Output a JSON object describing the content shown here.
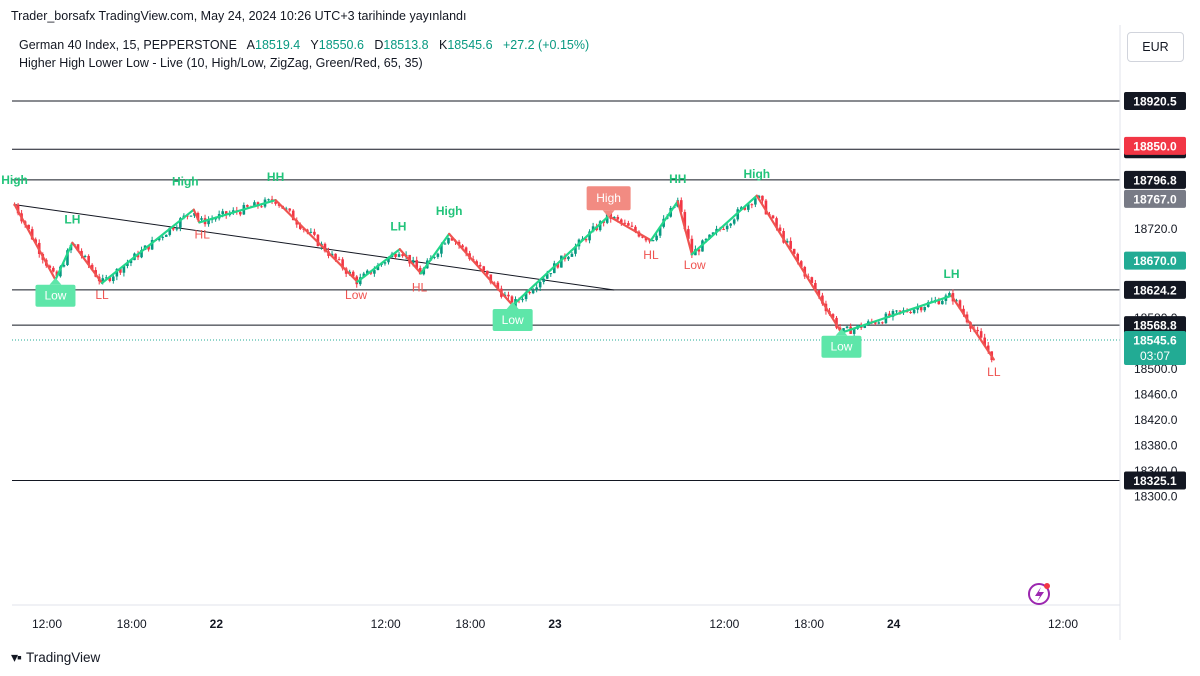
{
  "header": {
    "publisher": "Trader_borsafx TradingView.com, May 24, 2024 10:26 UTC+3 tarihinde yayınlandı"
  },
  "symbol": {
    "name": "German 40 Index, 15, PEPPERSTONE",
    "open_label": "A",
    "open": "18519.4",
    "high_label": "Y",
    "high": "18550.6",
    "low_label": "D",
    "low": "18513.8",
    "close_label": "K",
    "close": "18545.6",
    "change": "+27.2 (+0.15%)"
  },
  "indicator": {
    "text": "Higher High Lower Low - Live (10, High/Low, ZigZag, Green/Red, 65, 35)"
  },
  "currency_button": "EUR",
  "footer": {
    "logo_text": "TradingView"
  },
  "colors": {
    "up": "#089981",
    "down": "#f23645",
    "zigzag_up": "#22d68a",
    "zigzag_down": "#ef5350",
    "label_green_bg": "#5ee6a9",
    "label_red_bg": "#f28b82",
    "price_green": "#22ab94",
    "price_red": "#f23645"
  },
  "icons": {
    "lightning": "lightning-bolt-icon"
  },
  "chart_data": {
    "type": "candlestick",
    "ylim": [
      18290,
      18950
    ],
    "y_ticks": [
      "18720.0",
      "18580.0",
      "18500.0",
      "18460.0",
      "18420.0",
      "18380.0",
      "18340.0",
      "18300.0"
    ],
    "x_ticks": [
      {
        "label": "12:00",
        "t": 0.0
      },
      {
        "label": "18:00",
        "t": 6.0
      },
      {
        "label": "22",
        "t": 12.0
      },
      {
        "label": "12:00",
        "t": 24.0
      },
      {
        "label": "18:00",
        "t": 30.0
      },
      {
        "label": "23",
        "t": 36.0
      },
      {
        "label": "12:00",
        "t": 48.0
      },
      {
        "label": "18:00",
        "t": 54.0
      },
      {
        "label": "24",
        "t": 60.0
      },
      {
        "label": "12:00",
        "t": 72.0
      }
    ],
    "horizontal_lines": [
      {
        "price": 18920.5,
        "label": "18920.5"
      },
      {
        "price": 18844.8,
        "label": "18844.8"
      },
      {
        "price": 18796.8,
        "label": "18796.8"
      },
      {
        "price": 18624.2,
        "label": "18624.2"
      },
      {
        "price": 18568.8,
        "label": "18568.8"
      },
      {
        "price": 18325.1,
        "label": "18325.1"
      }
    ],
    "price_tags": [
      {
        "price": 18850.0,
        "label": "18850.0",
        "bg": "#f23645"
      },
      {
        "price": 18767.0,
        "label": "18767.0",
        "bg": "#787b86"
      },
      {
        "price": 18670.0,
        "label": "18670.0",
        "bg": "#22ab94"
      }
    ],
    "last_price": {
      "price": 18545.6,
      "label": "18545.6",
      "countdown": "03:07",
      "bg": "#22ab94"
    },
    "trendline": [
      {
        "t": -2.3,
        "p": 18758
      },
      {
        "t": 40.2,
        "p": 18624
      }
    ],
    "zigzag": [
      {
        "t": -2.3,
        "p": 18758
      },
      {
        "t": 0.6,
        "p": 18640
      },
      {
        "t": 1.8,
        "p": 18698
      },
      {
        "t": 3.9,
        "p": 18635
      },
      {
        "t": 10.4,
        "p": 18750
      },
      {
        "t": 10.8,
        "p": 18730
      },
      {
        "t": 16.2,
        "p": 18765
      },
      {
        "t": 22.0,
        "p": 18637
      },
      {
        "t": 25.0,
        "p": 18688
      },
      {
        "t": 26.5,
        "p": 18650
      },
      {
        "t": 28.5,
        "p": 18712
      },
      {
        "t": 33.0,
        "p": 18600
      },
      {
        "t": 39.8,
        "p": 18740
      },
      {
        "t": 42.8,
        "p": 18702
      },
      {
        "t": 44.7,
        "p": 18763
      },
      {
        "t": 45.7,
        "p": 18680
      },
      {
        "t": 50.3,
        "p": 18772
      },
      {
        "t": 56.3,
        "p": 18557
      },
      {
        "t": 64.1,
        "p": 18615
      },
      {
        "t": 67.1,
        "p": 18515
      }
    ],
    "pivot_labels": [
      {
        "text": "High",
        "t": -2.3,
        "p": 18790,
        "style": "text-green"
      },
      {
        "text": "LH",
        "t": 1.8,
        "p": 18728,
        "style": "text-green"
      },
      {
        "text": "Low",
        "t": 0.6,
        "p": 18615,
        "style": "box-green"
      },
      {
        "text": "LL",
        "t": 3.9,
        "p": 18610,
        "style": "text-red"
      },
      {
        "text": "High",
        "t": 9.8,
        "p": 18788,
        "style": "text-green"
      },
      {
        "text": "HL",
        "t": 11.0,
        "p": 18705,
        "style": "text-red"
      },
      {
        "text": "HH",
        "t": 16.2,
        "p": 18795,
        "style": "text-green"
      },
      {
        "text": "Low",
        "t": 21.9,
        "p": 18610,
        "style": "text-red"
      },
      {
        "text": "LH",
        "t": 24.9,
        "p": 18717,
        "style": "text-green"
      },
      {
        "text": "HL",
        "t": 26.4,
        "p": 18622,
        "style": "text-red"
      },
      {
        "text": "High",
        "t": 28.5,
        "p": 18742,
        "style": "text-green"
      },
      {
        "text": "Low",
        "t": 33.0,
        "p": 18577,
        "style": "box-green"
      },
      {
        "text": "High",
        "t": 39.8,
        "p": 18768,
        "style": "box-red"
      },
      {
        "text": "HH",
        "t": 44.7,
        "p": 18792,
        "style": "text-green"
      },
      {
        "text": "HL",
        "t": 42.8,
        "p": 18673,
        "style": "text-red"
      },
      {
        "text": "Low",
        "t": 45.9,
        "p": 18657,
        "style": "text-red"
      },
      {
        "text": "High",
        "t": 50.3,
        "p": 18800,
        "style": "text-green"
      },
      {
        "text": "Low",
        "t": 56.3,
        "p": 18535,
        "style": "box-green"
      },
      {
        "text": "LH",
        "t": 64.1,
        "p": 18643,
        "style": "text-green"
      },
      {
        "text": "LL",
        "t": 67.1,
        "p": 18489,
        "style": "text-red"
      }
    ]
  }
}
